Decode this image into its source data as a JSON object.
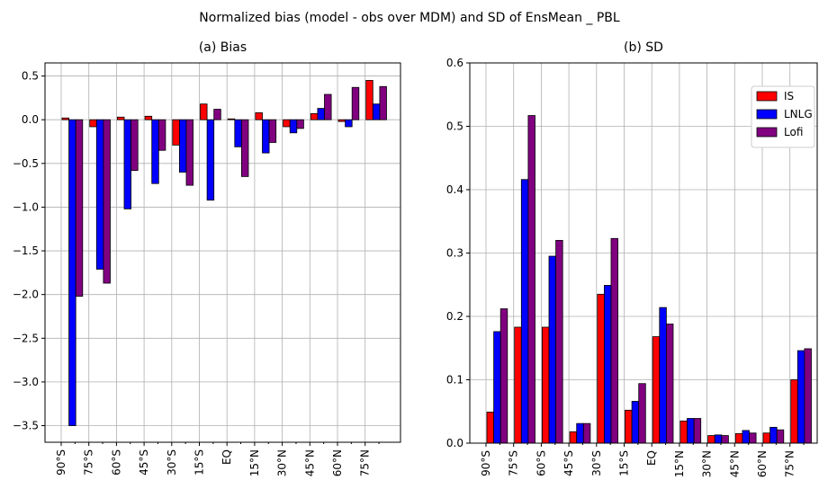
{
  "title": "Normalized bias (model - obs over MDM) and SD of EnsMean _ PBL",
  "chart_data": [
    {
      "type": "bar",
      "title": "(a) Bias",
      "categories": [
        "90°S",
        "75°S",
        "60°S",
        "45°S",
        "30°S",
        "15°S",
        "EQ",
        "15°N",
        "30°N",
        "45°N",
        "60°N",
        "75°N"
      ],
      "series": [
        {
          "name": "IS",
          "color": "#ff0000",
          "values": [
            0.02,
            -0.08,
            0.03,
            0.04,
            -0.29,
            0.18,
            0.01,
            0.08,
            -0.08,
            0.07,
            -0.02,
            0.45
          ]
        },
        {
          "name": "LNLG",
          "color": "#0000ff",
          "values": [
            -3.5,
            -1.71,
            -1.02,
            -0.73,
            -0.6,
            -0.92,
            -0.31,
            -0.38,
            -0.15,
            0.13,
            -0.08,
            0.18
          ]
        },
        {
          "name": "Lofi",
          "color": "#800080",
          "values": [
            -2.02,
            -1.87,
            -0.58,
            -0.35,
            -0.75,
            0.12,
            -0.65,
            -0.26,
            -0.1,
            0.29,
            0.37,
            0.38
          ]
        }
      ],
      "ylim": [
        -3.69,
        0.65
      ],
      "yticks": [
        0.5,
        {
          "value": 0,
          "label": "0.0"
        },
        {
          "value": -0.5,
          "label": "−0.5"
        },
        {
          "value": -1,
          "label": "−1.0"
        },
        {
          "value": -1.5,
          "label": "−1.5"
        },
        {
          "value": -2,
          "label": "−2.0"
        },
        {
          "value": -2.5,
          "label": "−2.5"
        },
        {
          "value": -3,
          "label": "−3.0"
        },
        {
          "value": -3.5,
          "label": "−3.5"
        }
      ],
      "grid": true
    },
    {
      "type": "bar",
      "title": "(b) SD",
      "categories": [
        "90°S",
        "75°S",
        "60°S",
        "45°S",
        "30°S",
        "15°S",
        "EQ",
        "15°N",
        "30°N",
        "45°N",
        "60°N",
        "75°N"
      ],
      "series": [
        {
          "name": "IS",
          "color": "#ff0000",
          "values": [
            0.049,
            0.183,
            0.183,
            0.018,
            0.235,
            0.052,
            0.168,
            0.035,
            0.012,
            0.015,
            0.016,
            0.1
          ]
        },
        {
          "name": "LNLG",
          "color": "#0000ff",
          "values": [
            0.176,
            0.416,
            0.295,
            0.031,
            0.249,
            0.066,
            0.214,
            0.039,
            0.013,
            0.02,
            0.025,
            0.146
          ]
        },
        {
          "name": "Lofi",
          "color": "#800080",
          "values": [
            0.212,
            0.517,
            0.32,
            0.031,
            0.323,
            0.094,
            0.188,
            0.039,
            0.012,
            0.016,
            0.021,
            0.149
          ]
        }
      ],
      "ylim": [
        0,
        0.6
      ],
      "yticks": [
        {
          "value": 0,
          "label": "0.0"
        },
        0.1,
        0.2,
        0.3,
        0.4,
        0.5,
        0.6
      ],
      "grid": true,
      "legend": "upper right"
    }
  ]
}
